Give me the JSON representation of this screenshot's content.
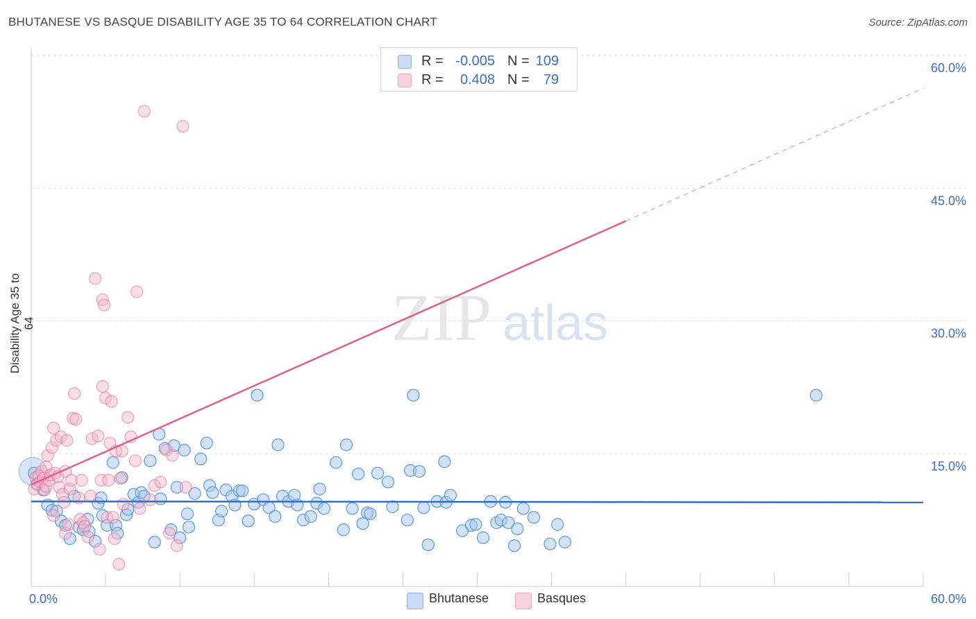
{
  "title": "BHUTANESE VS BASQUE DISABILITY AGE 35 TO 64 CORRELATION CHART",
  "source": "Source: ZipAtlas.com",
  "watermark": {
    "zip": "ZIP",
    "atlas": "atlas"
  },
  "legend_top": [
    {
      "r_label": "R =",
      "r_value": "-0.005",
      "n_label": "N =",
      "n_value": "109",
      "color": "#a9c6f0"
    },
    {
      "r_label": "R =",
      "r_value": "0.408",
      "n_label": "N =",
      "n_value": "79",
      "color": "#f5b6c9"
    }
  ],
  "legend_bottom": [
    {
      "label": "Bhutanese",
      "color": "#a9c6f0"
    },
    {
      "label": "Basques",
      "color": "#f5b6c9"
    }
  ],
  "chart_data": {
    "type": "scatter",
    "title": "BHUTANESE VS BASQUE DISABILITY AGE 35 TO 64 CORRELATION CHART",
    "xlabel": "",
    "ylabel": "Disability Age 35 to 64",
    "xlim": [
      0,
      60
    ],
    "ylim": [
      0,
      60
    ],
    "x_tick_labels": [
      "0.0%",
      "60.0%"
    ],
    "y_ticks": [
      15,
      30,
      45,
      60
    ],
    "y_tick_labels": [
      "15.0%",
      "30.0%",
      "45.0%",
      "60.0%"
    ],
    "series": [
      {
        "name": "Bhutanese",
        "color": "#5b9bd5",
        "fill": "#a9c6f0",
        "trend": {
          "x0": 0,
          "y0": 9.6,
          "x1": 60,
          "y1": 9.5
        },
        "points": [
          [
            0.2,
            12.8
          ],
          [
            0.4,
            11.6
          ],
          [
            0.8,
            10.9
          ],
          [
            1.1,
            9.2
          ],
          [
            1.4,
            8.6
          ],
          [
            1.7,
            8.5
          ],
          [
            2.0,
            7.4
          ],
          [
            2.3,
            6.9
          ],
          [
            2.6,
            5.4
          ],
          [
            2.9,
            10.2
          ],
          [
            3.2,
            6.7
          ],
          [
            3.5,
            6.4
          ],
          [
            3.8,
            7.6
          ],
          [
            3.9,
            6.2
          ],
          [
            4.3,
            5.1
          ],
          [
            4.5,
            9.4
          ],
          [
            4.7,
            10.0
          ],
          [
            4.8,
            8.0
          ],
          [
            5.1,
            6.9
          ],
          [
            5.5,
            14.0
          ],
          [
            5.7,
            6.9
          ],
          [
            5.8,
            6.0
          ],
          [
            6.1,
            12.3
          ],
          [
            6.4,
            8.1
          ],
          [
            6.5,
            8.7
          ],
          [
            6.9,
            10.4
          ],
          [
            7.2,
            9.5
          ],
          [
            7.4,
            10.6
          ],
          [
            7.6,
            10.2
          ],
          [
            8.0,
            14.2
          ],
          [
            8.3,
            5.0
          ],
          [
            8.6,
            17.2
          ],
          [
            8.7,
            9.9
          ],
          [
            9.0,
            15.6
          ],
          [
            9.4,
            6.4
          ],
          [
            9.6,
            15.9
          ],
          [
            9.8,
            11.2
          ],
          [
            10.0,
            5.5
          ],
          [
            10.3,
            15.4
          ],
          [
            10.5,
            8.2
          ],
          [
            10.6,
            6.7
          ],
          [
            11.0,
            10.5
          ],
          [
            11.4,
            14.4
          ],
          [
            11.8,
            16.2
          ],
          [
            12.0,
            11.4
          ],
          [
            12.2,
            10.6
          ],
          [
            12.6,
            7.5
          ],
          [
            12.8,
            8.5
          ],
          [
            13.1,
            10.9
          ],
          [
            13.5,
            10.2
          ],
          [
            13.7,
            9.2
          ],
          [
            14.0,
            10.8
          ],
          [
            14.2,
            10.8
          ],
          [
            14.6,
            7.4
          ],
          [
            15.0,
            9.3
          ],
          [
            15.2,
            21.6
          ],
          [
            15.6,
            9.8
          ],
          [
            16.0,
            8.9
          ],
          [
            16.4,
            7.9
          ],
          [
            16.6,
            16.0
          ],
          [
            16.9,
            10.2
          ],
          [
            17.3,
            9.6
          ],
          [
            17.7,
            10.3
          ],
          [
            17.9,
            9.2
          ],
          [
            18.3,
            7.5
          ],
          [
            18.8,
            7.9
          ],
          [
            19.2,
            9.4
          ],
          [
            19.4,
            11.0
          ],
          [
            19.7,
            8.8
          ],
          [
            20.5,
            14.0
          ],
          [
            21.0,
            6.4
          ],
          [
            21.2,
            16.0
          ],
          [
            21.6,
            8.8
          ],
          [
            22.0,
            12.7
          ],
          [
            22.3,
            7.1
          ],
          [
            22.6,
            8.3
          ],
          [
            22.8,
            8.2
          ],
          [
            23.3,
            12.8
          ],
          [
            24.0,
            11.8
          ],
          [
            24.3,
            9.0
          ],
          [
            25.3,
            7.5
          ],
          [
            25.5,
            13.1
          ],
          [
            25.7,
            21.6
          ],
          [
            26.1,
            13.0
          ],
          [
            26.4,
            8.9
          ],
          [
            26.7,
            4.7
          ],
          [
            27.3,
            9.6
          ],
          [
            27.8,
            14.1
          ],
          [
            27.9,
            9.5
          ],
          [
            28.2,
            10.3
          ],
          [
            29.0,
            6.3
          ],
          [
            29.6,
            6.9
          ],
          [
            29.9,
            7.0
          ],
          [
            30.4,
            5.5
          ],
          [
            30.9,
            9.6
          ],
          [
            31.3,
            7.2
          ],
          [
            31.6,
            7.5
          ],
          [
            31.9,
            9.5
          ],
          [
            32.1,
            7.2
          ],
          [
            32.5,
            4.6
          ],
          [
            32.7,
            6.5
          ],
          [
            33.1,
            8.8
          ],
          [
            33.8,
            7.8
          ],
          [
            34.9,
            4.8
          ],
          [
            35.4,
            7.0
          ],
          [
            35.9,
            5.0
          ],
          [
            52.8,
            21.6
          ]
        ]
      },
      {
        "name": "Basques",
        "color": "#e0608a",
        "fill": "#f5b6c9",
        "trend": {
          "x0": 0,
          "y0": 11.5,
          "x1": 40,
          "y1": 41.3
        },
        "trend_extrapolated": {
          "x0": 40,
          "y0": 41.3,
          "x1": 60,
          "y1": 56.3
        },
        "points": [
          [
            0.2,
            11.0
          ],
          [
            0.3,
            12.3
          ],
          [
            0.4,
            11.5
          ],
          [
            0.5,
            12.5
          ],
          [
            0.6,
            11.8
          ],
          [
            0.7,
            13.0
          ],
          [
            0.8,
            12.2
          ],
          [
            0.9,
            10.9
          ],
          [
            1.0,
            13.5
          ],
          [
            1.0,
            11.3
          ],
          [
            1.1,
            14.8
          ],
          [
            1.2,
            12.0
          ],
          [
            1.3,
            12.6
          ],
          [
            1.4,
            15.7
          ],
          [
            1.5,
            17.9
          ],
          [
            1.5,
            8.0
          ],
          [
            1.6,
            12.8
          ],
          [
            1.7,
            16.5
          ],
          [
            1.8,
            12.4
          ],
          [
            1.9,
            11.2
          ],
          [
            2.0,
            16.9
          ],
          [
            2.1,
            10.4
          ],
          [
            2.2,
            9.5
          ],
          [
            2.3,
            13.0
          ],
          [
            2.3,
            6.0
          ],
          [
            2.4,
            16.5
          ],
          [
            2.5,
            7.0
          ],
          [
            2.6,
            11.0
          ],
          [
            2.7,
            12.0
          ],
          [
            2.8,
            19.0
          ],
          [
            2.9,
            21.8
          ],
          [
            3.0,
            18.9
          ],
          [
            3.2,
            10.0
          ],
          [
            3.3,
            7.6
          ],
          [
            3.4,
            12.0
          ],
          [
            3.5,
            7.2
          ],
          [
            3.6,
            6.8
          ],
          [
            3.8,
            5.6
          ],
          [
            4.0,
            10.2
          ],
          [
            4.1,
            16.7
          ],
          [
            4.3,
            34.8
          ],
          [
            4.5,
            17.0
          ],
          [
            4.6,
            4.2
          ],
          [
            4.7,
            12.0
          ],
          [
            4.8,
            32.4
          ],
          [
            4.8,
            22.6
          ],
          [
            4.9,
            31.8
          ],
          [
            5.0,
            21.3
          ],
          [
            5.1,
            7.8
          ],
          [
            5.2,
            12.0
          ],
          [
            5.3,
            16.2
          ],
          [
            5.4,
            20.9
          ],
          [
            5.5,
            7.8
          ],
          [
            5.6,
            5.4
          ],
          [
            5.7,
            15.3
          ],
          [
            5.9,
            2.5
          ],
          [
            6.0,
            12.2
          ],
          [
            6.1,
            15.3
          ],
          [
            6.2,
            9.3
          ],
          [
            6.5,
            19.1
          ],
          [
            6.7,
            16.9
          ],
          [
            7.0,
            14.2
          ],
          [
            7.1,
            33.3
          ],
          [
            7.3,
            8.8
          ],
          [
            7.6,
            53.7
          ],
          [
            8.0,
            9.8
          ],
          [
            8.3,
            11.4
          ],
          [
            8.7,
            11.8
          ],
          [
            9.1,
            15.4
          ],
          [
            9.3,
            6.0
          ],
          [
            9.5,
            14.8
          ],
          [
            9.8,
            4.6
          ],
          [
            10.2,
            52.0
          ],
          [
            10.4,
            11.2
          ]
        ]
      }
    ]
  }
}
